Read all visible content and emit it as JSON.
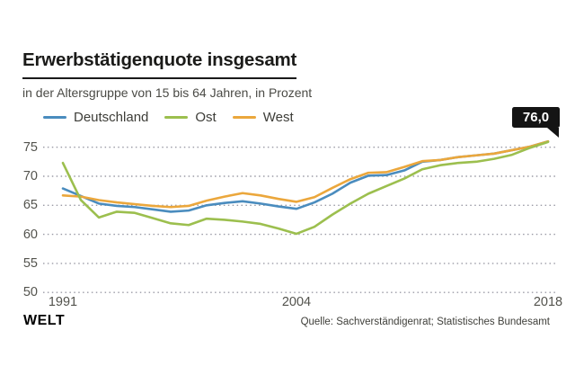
{
  "header": {
    "title": "Erwerbstätigenquote insgesamt",
    "subtitle": "in der Altersgruppe von 15 bis 64 Jahren, in Prozent"
  },
  "legend": {
    "items": [
      {
        "label": "Deutschland",
        "color": "#4a8cbe"
      },
      {
        "label": "Ost",
        "color": "#9cbf4e"
      },
      {
        "label": "West",
        "color": "#eba73c"
      }
    ]
  },
  "annotation": {
    "text": "76,0",
    "background": "#141414",
    "text_color": "#ffffff"
  },
  "footer": {
    "brand": "WELT",
    "source": "Quelle: Sachverständigenrat; Statistisches Bundesamt"
  },
  "chart_data": {
    "type": "line",
    "title": "Erwerbstätigenquote insgesamt",
    "subtitle": "in der Altersgruppe von 15 bis 64 Jahren, in Prozent",
    "unit": "Prozent",
    "x": [
      1991,
      1992,
      1993,
      1994,
      1995,
      1996,
      1997,
      1998,
      1999,
      2000,
      2001,
      2002,
      2003,
      2004,
      2005,
      2006,
      2007,
      2008,
      2009,
      2010,
      2011,
      2012,
      2013,
      2014,
      2015,
      2016,
      2017,
      2018
    ],
    "series": [
      {
        "name": "Deutschland",
        "color": "#4a8cbe",
        "values": [
          67.9,
          66.6,
          65.3,
          64.9,
          64.7,
          64.3,
          63.9,
          64.1,
          65.0,
          65.4,
          65.7,
          65.3,
          64.8,
          64.4,
          65.5,
          67.0,
          68.9,
          70.1,
          70.2,
          71.0,
          72.5,
          72.8,
          73.3,
          73.6,
          73.9,
          74.5,
          75.1,
          76.0
        ]
      },
      {
        "name": "West",
        "color": "#eba73c",
        "values": [
          66.7,
          66.5,
          65.9,
          65.5,
          65.2,
          64.9,
          64.7,
          64.9,
          65.8,
          66.5,
          67.1,
          66.7,
          66.1,
          65.6,
          66.4,
          68.0,
          69.5,
          70.6,
          70.7,
          71.6,
          72.6,
          72.8,
          73.3,
          73.6,
          73.9,
          74.5,
          75.1,
          76.0
        ]
      },
      {
        "name": "Ost",
        "color": "#9cbf4e",
        "values": [
          72.3,
          65.9,
          62.9,
          63.9,
          63.7,
          62.8,
          61.9,
          61.6,
          62.7,
          62.5,
          62.2,
          61.8,
          61.0,
          60.1,
          61.3,
          63.4,
          65.3,
          67.0,
          68.3,
          69.6,
          71.2,
          71.9,
          72.3,
          72.5,
          73.0,
          73.7,
          74.9,
          75.9
        ]
      }
    ],
    "xticks": [
      1991,
      2004,
      2018
    ],
    "yticks": [
      50,
      55,
      60,
      65,
      70,
      75
    ],
    "ylim": [
      50,
      77.5
    ],
    "grid": "horizontal dotted",
    "legend_position": "top",
    "annotation": {
      "x": 2018,
      "y": 76.0,
      "text": "76,0",
      "series": "Deutschland"
    }
  }
}
